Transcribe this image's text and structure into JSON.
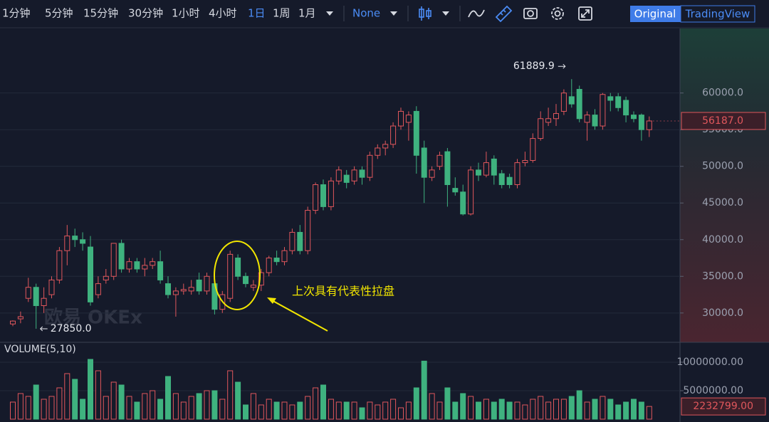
{
  "toolbar": {
    "intervals": [
      "1分钟",
      "5分钟",
      "15分钟",
      "30分钟",
      "1小时",
      "4小时",
      "1日",
      "1周",
      "1月"
    ],
    "indicator": "None",
    "views": [
      "Original",
      "TradingView"
    ]
  },
  "watermark": "欧易 OKEx",
  "annotation": "上次具有代表性拉盘",
  "chart_data": [
    {
      "type": "candlestick",
      "up_color": "#e0575c",
      "down_color": "#3fb27f",
      "open": [
        28500,
        29200,
        32000,
        33500,
        31000,
        32500,
        34500,
        38500,
        40500,
        40000,
        39000,
        32500,
        34500,
        35000,
        39500,
        36000,
        37000,
        36000,
        36500,
        37000,
        34000,
        32500,
        33000,
        33000,
        34500,
        33000,
        34000,
        30500,
        32000,
        37500,
        35000,
        33500,
        33800,
        35500,
        37500,
        37000,
        38500,
        41000,
        38500,
        44000,
        47500,
        44500,
        48000,
        48800,
        48000,
        49500,
        48500,
        51500,
        52500,
        53000,
        55500,
        56000,
        57500,
        52500,
        48500,
        50000,
        52000,
        47000,
        46500,
        43500,
        49500,
        48800,
        51000,
        49000,
        48500,
        47500,
        50500,
        50800,
        53800,
        56000,
        56500,
        57500,
        59500,
        60500,
        56000,
        57000,
        55500,
        59500,
        59500,
        59000,
        57000,
        57000,
        55000
      ],
      "high": [
        29000,
        30200,
        34800,
        34000,
        33500,
        35000,
        39000,
        42000,
        41500,
        41000,
        40500,
        35000,
        36000,
        39500,
        40000,
        37500,
        37500,
        37500,
        37500,
        38500,
        35000,
        33500,
        34000,
        34500,
        35500,
        35500,
        34500,
        33000,
        38500,
        38000,
        35500,
        34500,
        36000,
        37800,
        38500,
        39000,
        41500,
        42000,
        44500,
        47800,
        48200,
        48500,
        50000,
        49500,
        50000,
        50000,
        52000,
        53000,
        53500,
        56000,
        58000,
        57500,
        58200,
        53500,
        50000,
        52000,
        52500,
        48500,
        47500,
        50000,
        50500,
        52000,
        51500,
        49500,
        49000,
        51000,
        52000,
        54500,
        57500,
        58000,
        58500,
        60500,
        61889.9,
        61000,
        57500,
        57800,
        60000,
        60000,
        60000,
        59500,
        57500,
        57200,
        56800
      ],
      "low": [
        28200,
        28600,
        31500,
        27850,
        30000,
        32000,
        34000,
        36500,
        39000,
        38500,
        31000,
        32000,
        34000,
        34500,
        35500,
        35500,
        35500,
        35000,
        36000,
        34000,
        32000,
        29500,
        32500,
        32500,
        32500,
        32500,
        29800,
        30000,
        31500,
        34500,
        33500,
        33000,
        33000,
        35000,
        36500,
        36500,
        38000,
        38000,
        38000,
        43500,
        44000,
        44000,
        47500,
        47000,
        47500,
        47500,
        48000,
        51000,
        51500,
        52500,
        55000,
        53500,
        49000,
        45000,
        48000,
        49500,
        44500,
        46000,
        43300,
        43300,
        48000,
        48500,
        47500,
        47000,
        47000,
        47000,
        50000,
        50500,
        53500,
        55500,
        55500,
        57000,
        58000,
        56000,
        53500,
        55000,
        55000,
        57500,
        57500,
        56000,
        56000,
        53500,
        54000
      ],
      "close": [
        28900,
        29500,
        33500,
        31000,
        32000,
        34500,
        38500,
        40500,
        40000,
        39500,
        31500,
        34000,
        35000,
        39500,
        36000,
        37000,
        36000,
        36500,
        37000,
        34500,
        32500,
        33000,
        33200,
        33500,
        33000,
        35000,
        30500,
        32500,
        38000,
        35000,
        34000,
        33800,
        35500,
        37500,
        37000,
        38500,
        41000,
        38500,
        44000,
        47500,
        44500,
        48000,
        49500,
        47800,
        49500,
        48500,
        51500,
        52500,
        53000,
        55500,
        57500,
        57000,
        51500,
        48500,
        49500,
        51500,
        47500,
        46500,
        43500,
        49500,
        48800,
        50500,
        48800,
        47500,
        47500,
        50500,
        50800,
        53800,
        56500,
        56500,
        57200,
        60000,
        58500,
        56500,
        57000,
        55500,
        59800,
        59000,
        58000,
        57000,
        56500,
        55000,
        56187
      ],
      "high_label": "61889.9",
      "low_label": "27850.0",
      "last_label": "56187.0",
      "ylim": [
        26100,
        68800
      ],
      "yticks": [
        {
          "value": 30000,
          "label": "30000.0"
        },
        {
          "value": 35000,
          "label": "35000.0"
        },
        {
          "value": 40000,
          "label": "40000.0"
        },
        {
          "value": 45000,
          "label": "45000.0"
        },
        {
          "value": 50000,
          "label": "50000.0"
        },
        {
          "value": 55000,
          "label": "55000.0"
        },
        {
          "value": 60000,
          "label": "60000.0"
        }
      ],
      "grid": true
    },
    {
      "type": "bar",
      "title": "VOLUME(5,10)",
      "values": [
        3000000,
        4500000,
        4000000,
        6000000,
        3500000,
        4000000,
        5500000,
        8000000,
        7000000,
        3500000,
        10500000,
        8500000,
        4000000,
        6500000,
        6000000,
        4000000,
        3000000,
        4500000,
        5000000,
        3500000,
        7500000,
        4500000,
        3000000,
        4000000,
        4500000,
        5000000,
        5000000,
        3500000,
        8500000,
        6500000,
        2500000,
        4500000,
        2500000,
        3500000,
        3000000,
        3000000,
        2500000,
        3000000,
        4000000,
        5500000,
        6000000,
        3500000,
        3000000,
        3000000,
        3000000,
        2000000,
        3000000,
        2500000,
        3000000,
        3500000,
        2000000,
        3000000,
        5500000,
        10200000,
        4500000,
        3000000,
        5500000,
        3000000,
        4500000,
        4000000,
        3000000,
        3500000,
        3000000,
        3500000,
        3000000,
        3000000,
        2500000,
        3500000,
        4000000,
        3000000,
        3500000,
        3500000,
        4000000,
        5000000,
        3000000,
        3500000,
        4000000,
        3500000,
        2500000,
        3000000,
        3500000,
        3000000,
        2232799
      ],
      "last_label": "2232799.00",
      "ylim": [
        0,
        13000000
      ],
      "yticks": [
        {
          "value": 5000000,
          "label": "5000000.00"
        },
        {
          "value": 10000000,
          "label": "10000000.00"
        }
      ],
      "grid": true
    }
  ]
}
